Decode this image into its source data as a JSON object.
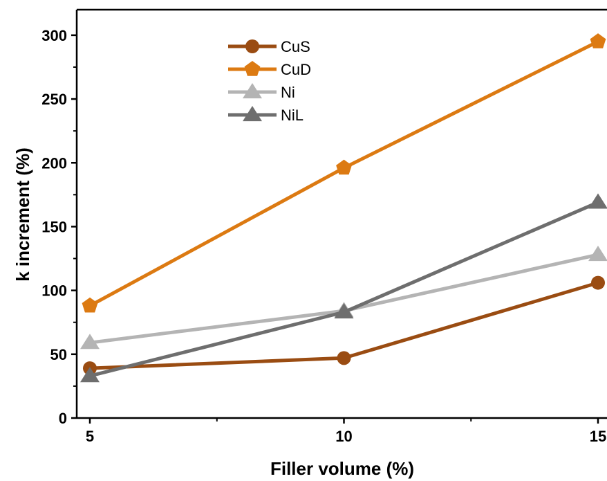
{
  "chart_data": {
    "type": "line",
    "title": "",
    "xlabel": "Filler volume (%)",
    "ylabel": "k increment (%)",
    "x": [
      5,
      10,
      15
    ],
    "xlim": [
      4.8,
      15.1
    ],
    "ylim": [
      0,
      320
    ],
    "xticks": [
      5,
      10,
      15
    ],
    "yticks": [
      0,
      50,
      100,
      150,
      200,
      250,
      300
    ],
    "grid": false,
    "legend_position": "top-left",
    "series": [
      {
        "name": "CuS",
        "values": [
          39,
          47,
          106
        ],
        "color": "#9a4c12",
        "marker": "circle"
      },
      {
        "name": "CuD",
        "values": [
          88,
          196,
          295
        ],
        "color": "#dc7a12",
        "marker": "pentagon"
      },
      {
        "name": "Ni",
        "values": [
          59,
          84,
          128
        ],
        "color": "#b4b4b4",
        "marker": "triangle"
      },
      {
        "name": "NiL",
        "values": [
          33,
          83,
          169
        ],
        "color": "#6e6e6e",
        "marker": "triangle"
      }
    ]
  }
}
